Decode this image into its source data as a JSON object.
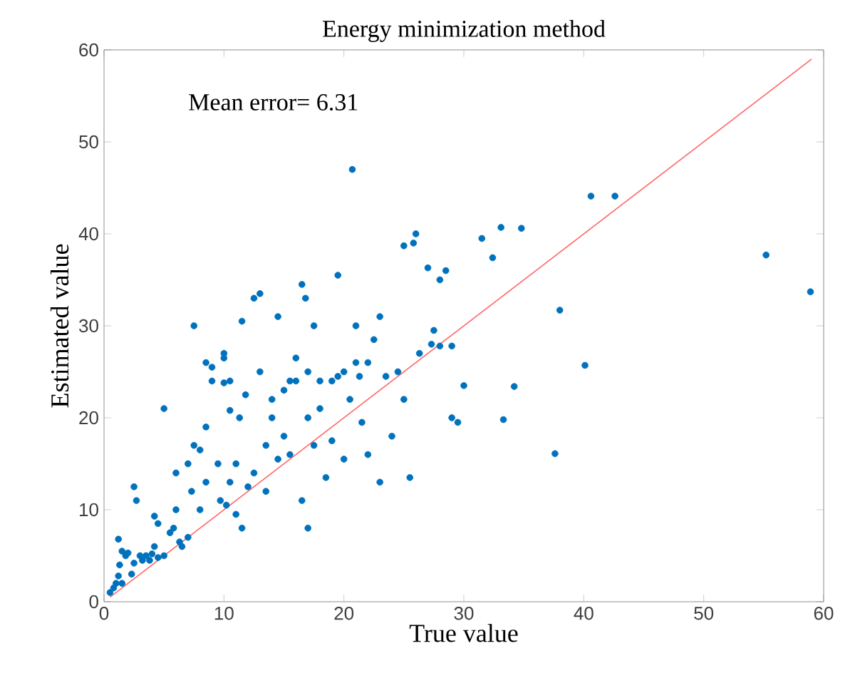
{
  "chart_data": {
    "type": "scatter",
    "title": "Energy minimization method",
    "xlabel": "True value",
    "ylabel": "Estimated value",
    "annotations": [
      "Mean error= 6.31"
    ],
    "xlim": [
      0,
      60
    ],
    "ylim": [
      0,
      60
    ],
    "xticks": [
      0,
      10,
      20,
      30,
      40,
      50,
      60
    ],
    "yticks": [
      0,
      10,
      20,
      30,
      40,
      50,
      60
    ],
    "grid": false,
    "marker": "circle",
    "series": [
      {
        "color": "#0072bd",
        "x": [
          0.5,
          0.8,
          1,
          1.2,
          1.5,
          1.3,
          1.5,
          1.2,
          1.8,
          2,
          2.3,
          2.5,
          2.5,
          2.7,
          3,
          3.2,
          3.5,
          3.8,
          4,
          4.2,
          4.2,
          4.5,
          4.5,
          5,
          5,
          5.5,
          5.8,
          6,
          6,
          6.3,
          6.5,
          7,
          7,
          7.3,
          7.5,
          7.5,
          8,
          8,
          8.5,
          8.5,
          8.5,
          9,
          9,
          9.5,
          9.7,
          10,
          10,
          10,
          10.2,
          10.5,
          10.5,
          10.5,
          11,
          11,
          11.3,
          11.5,
          11.5,
          11.8,
          12,
          12.5,
          12.5,
          13,
          13,
          13.5,
          13.5,
          14,
          14,
          14.5,
          14.5,
          15,
          15,
          15.5,
          15.5,
          16,
          16,
          16.5,
          16.5,
          16.8,
          17,
          17,
          17,
          17.5,
          17.5,
          18,
          18,
          18.5,
          19,
          19,
          19.5,
          19.5,
          20,
          20,
          20.5,
          20.7,
          21,
          21,
          21.3,
          21.5,
          22,
          22,
          22.5,
          23,
          23,
          23.5,
          24,
          24.5,
          25,
          25,
          25.5,
          25.8,
          26,
          26.3,
          27,
          27.3,
          27.5,
          28,
          28,
          28.5,
          29,
          29,
          29.5,
          30,
          31.5,
          32.4,
          33.1,
          33.3,
          34.2,
          34.8,
          37.6,
          38,
          40.1,
          40.6,
          42.6,
          55.2,
          58.9
        ],
        "values": [
          1,
          1.5,
          2,
          2.8,
          2,
          4,
          5.5,
          6.8,
          5,
          5.3,
          3,
          4.2,
          12.5,
          11,
          5,
          4.5,
          5,
          4.5,
          5.2,
          6,
          9.3,
          8.5,
          4.8,
          5,
          21,
          7.5,
          8,
          10,
          14,
          6.5,
          6,
          15,
          7,
          12,
          30,
          17,
          16.5,
          10,
          13,
          19,
          26,
          24,
          25.5,
          15,
          11,
          26.5,
          23.8,
          27,
          10.5,
          20.8,
          24,
          13,
          9.5,
          15,
          20,
          30.5,
          8,
          22.5,
          12.5,
          33,
          14,
          33.5,
          25,
          17,
          12,
          20,
          22,
          31,
          15.5,
          23,
          18,
          24,
          16,
          26.5,
          24,
          11,
          34.5,
          33,
          20,
          25,
          8,
          30,
          17,
          24,
          21,
          13.5,
          24,
          17.5,
          24.5,
          35.5,
          15.5,
          25,
          22,
          47,
          30,
          26,
          24.5,
          19.5,
          26,
          16,
          28.5,
          13,
          31,
          24.5,
          18,
          25,
          22,
          38.7,
          13.5,
          39,
          40,
          27,
          36.3,
          28,
          29.5,
          27.8,
          35,
          36,
          20,
          27.8,
          19.5,
          23.5,
          39.5,
          37.4,
          40.7,
          19.8,
          23.4,
          40.6,
          16.1,
          31.7,
          25.7,
          44.1,
          44.1,
          37.7,
          33.7
        ]
      },
      {
        "type": "line",
        "color": "#ff6666",
        "marker": "none",
        "x": [
          0.5,
          59
        ],
        "values": [
          0.5,
          59
        ]
      }
    ]
  }
}
